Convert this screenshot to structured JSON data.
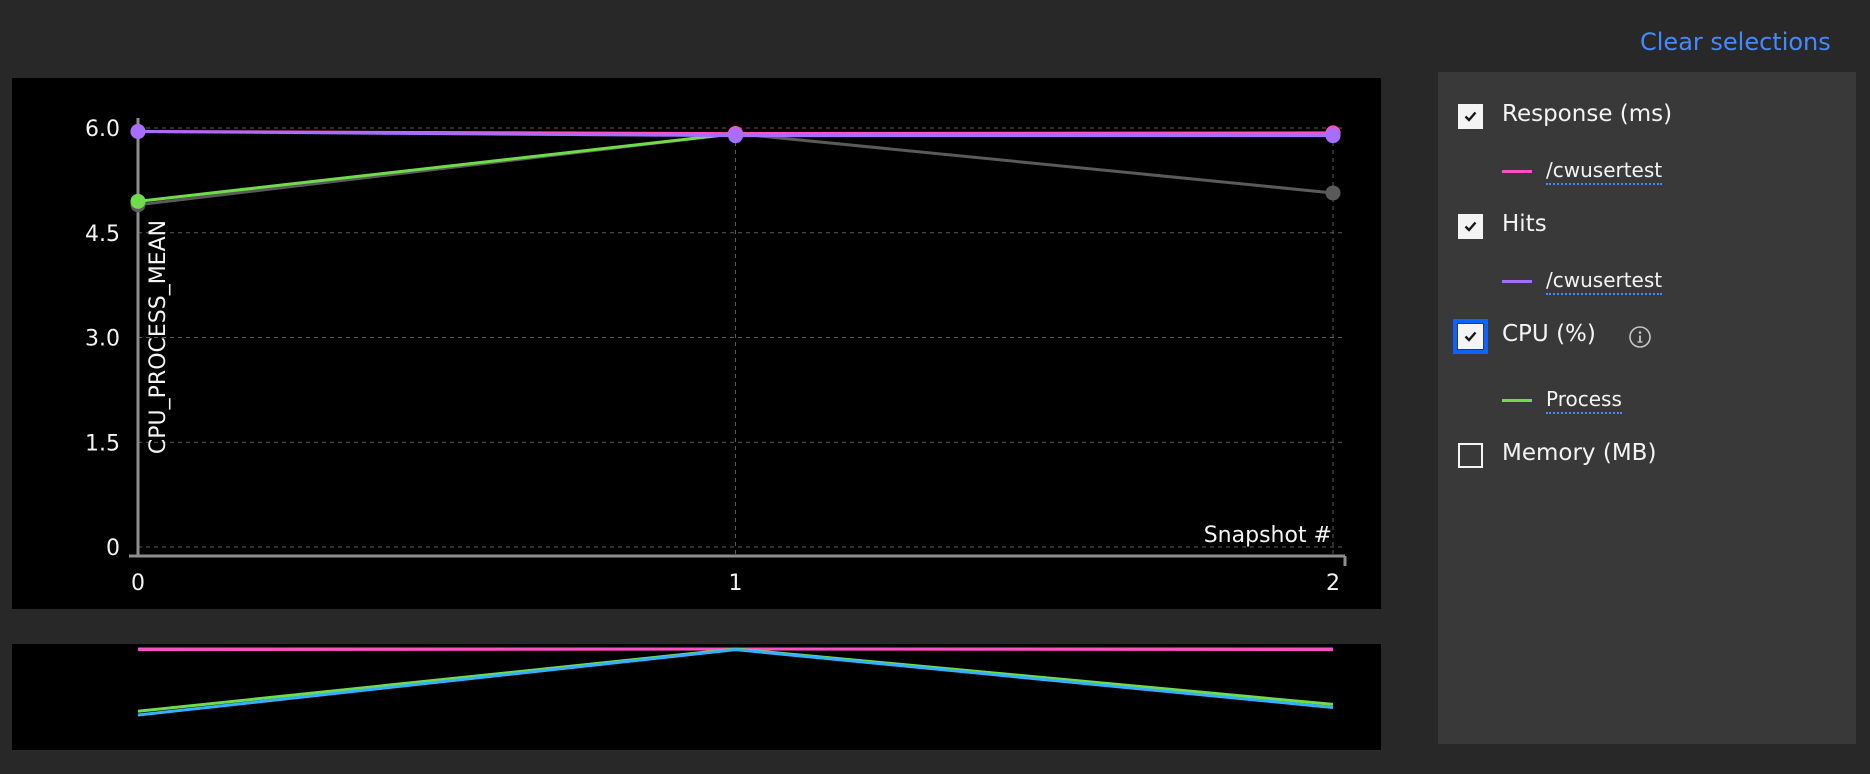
{
  "clear_selections_label": "Clear selections",
  "chart_data": {
    "type": "line",
    "x": [
      0,
      1,
      2
    ],
    "xlabel": "Snapshot #",
    "ylabel": "CPU_PROCESS_MEAN",
    "ylim": [
      0,
      6.0
    ],
    "y_ticks": [
      "6.0",
      "4.5",
      "3.0",
      "1.5",
      "0"
    ],
    "x_ticks": [
      "0",
      "1",
      "2"
    ],
    "grid": true,
    "series": [
      {
        "name": "Process",
        "color": "#5a5a5a",
        "values": [
          4.9,
          5.92,
          5.07
        ]
      },
      {
        "name": "Process",
        "color": "#6fdc4c",
        "values": [
          4.95,
          5.92,
          5.92
        ]
      },
      {
        "name": "/cwusertest",
        "color": "#ff4fc1",
        "values": [
          5.95,
          5.92,
          5.93
        ]
      },
      {
        "name": "/cwusertest",
        "color": "#a56eff",
        "values": [
          5.95,
          5.89,
          5.89
        ]
      }
    ]
  },
  "overview_data": {
    "series": [
      {
        "color": "#a56eff",
        "values": [
          5.96,
          5.96,
          5.96
        ]
      },
      {
        "color": "#ff4fc1",
        "values": [
          5.95,
          5.96,
          5.95
        ]
      },
      {
        "color": "#6fdc4c",
        "values": [
          4.96,
          5.96,
          5.07
        ]
      },
      {
        "color": "#33b1ff",
        "values": [
          4.9,
          5.95,
          5.02
        ]
      }
    ]
  },
  "legend": {
    "groups": [
      {
        "label": "Response (ms)",
        "checked": true,
        "focused": false,
        "info": false,
        "series": [
          {
            "label": "/cwusertest",
            "color": "#ff4fc1"
          }
        ]
      },
      {
        "label": "Hits",
        "checked": true,
        "focused": false,
        "info": false,
        "series": [
          {
            "label": "/cwusertest",
            "color": "#a56eff"
          }
        ]
      },
      {
        "label": "CPU (%)",
        "checked": true,
        "focused": true,
        "info": true,
        "series": [
          {
            "label": "Process",
            "color": "#6fdc4c"
          }
        ]
      },
      {
        "label": "Memory (MB)",
        "checked": false,
        "focused": false,
        "info": false,
        "series": []
      }
    ]
  }
}
